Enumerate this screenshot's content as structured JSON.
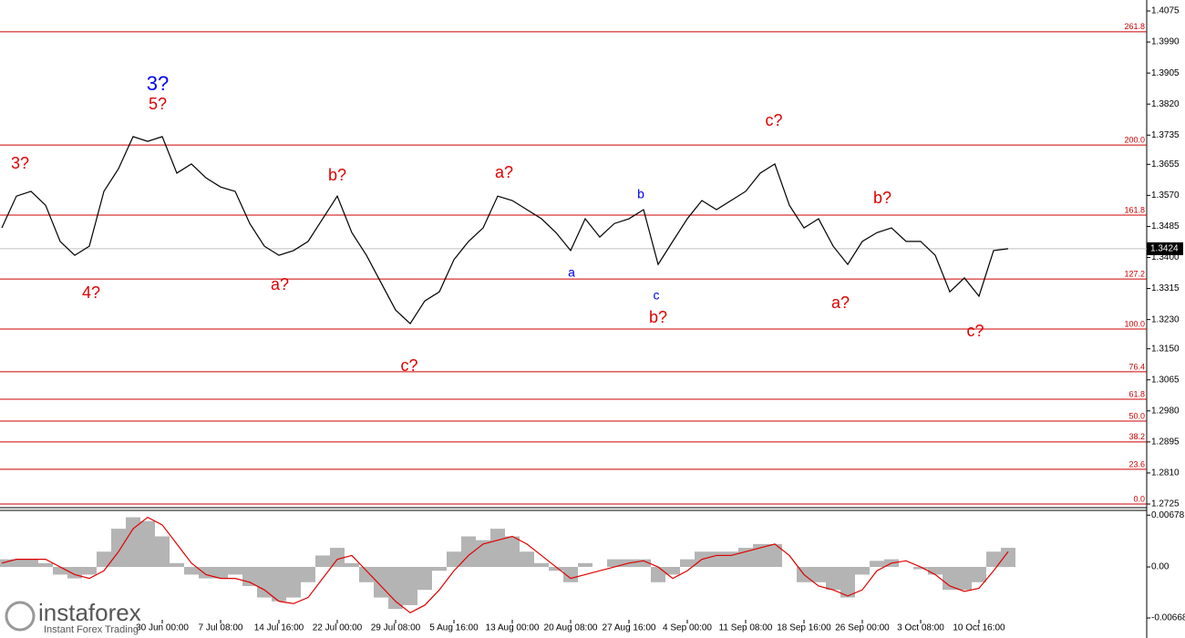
{
  "chart_data": [
    {
      "type": "line",
      "categories": [
        null,
        null,
        null,
        null,
        null,
        null,
        null,
        null,
        null,
        null,
        null,
        "30 Jun 00:00",
        null,
        null,
        null,
        "7 Jul 08:00",
        null,
        null,
        null,
        "14 Jul 16:00",
        null,
        null,
        null,
        "22 Jul 00:00",
        null,
        null,
        null,
        "29 Jul 08:00",
        null,
        null,
        null,
        "5 Aug 16:00",
        null,
        null,
        null,
        "13 Aug 00:00",
        null,
        null,
        null,
        "20 Aug 08:00",
        null,
        null,
        null,
        "27 Aug 16:00",
        null,
        null,
        null,
        "4 Sep 00:00",
        null,
        null,
        null,
        "11 Sep 08:00",
        null,
        null,
        null,
        "18 Sep 16:00",
        null,
        null,
        null,
        "26 Sep 00:00",
        null,
        null,
        null,
        "3 Oct 08:00",
        null,
        null,
        null,
        "10 Oct 16:00",
        null,
        null
      ],
      "values": [
        1.3481,
        1.3568,
        1.3581,
        1.3543,
        1.3444,
        1.3406,
        1.3431,
        1.3581,
        1.3643,
        1.3731,
        1.3718,
        1.3731,
        1.3631,
        1.3656,
        1.3618,
        1.3593,
        1.3581,
        1.3493,
        1.3431,
        1.3406,
        1.3419,
        1.3444,
        1.3506,
        1.3568,
        1.3468,
        1.3406,
        1.3331,
        1.3256,
        1.3219,
        1.3281,
        1.3306,
        1.3394,
        1.3444,
        1.3481,
        1.3568,
        1.3556,
        1.3531,
        1.3506,
        1.3468,
        1.3419,
        1.3506,
        1.3456,
        1.3493,
        1.3506,
        1.3531,
        1.3381,
        1.3444,
        1.3506,
        1.3556,
        1.3531,
        1.3556,
        1.3581,
        1.3631,
        1.3656,
        1.3543,
        1.3481,
        1.3506,
        1.3431,
        1.3381,
        1.3444,
        1.3468,
        1.3481,
        1.3444,
        1.3444,
        1.3406,
        1.3306,
        1.3344,
        1.3294,
        1.3419,
        1.3424
      ],
      "color": "#000000",
      "ylim": [
        1.2715,
        1.4105
      ],
      "yticks": [
        1.4075,
        {
          "value": 1.399,
          "label": "1.3990"
        },
        1.3905,
        {
          "value": 1.382,
          "label": "1.3820"
        },
        1.3735,
        1.3655,
        {
          "value": 1.357,
          "label": "1.3570"
        },
        1.3485,
        {
          "value": 1.34,
          "label": "1.3400"
        },
        1.3315,
        {
          "value": 1.323,
          "label": "1.3230"
        },
        {
          "value": 1.315,
          "label": "1.3150"
        },
        1.3065,
        {
          "value": 1.298,
          "label": "1.2980"
        },
        1.2895,
        {
          "value": 1.281,
          "label": "1.2810"
        },
        1.2725
      ],
      "fib_color": "#cc0000",
      "fib_levels": [
        {
          "label": "261.8",
          "value": 1.4018
        },
        {
          "label": "200.0",
          "value": 1.3708
        },
        {
          "label": "161.8",
          "value": 1.3516
        },
        {
          "label": "127.2",
          "value": 1.3341
        },
        {
          "label": "100.0",
          "value": 1.3204
        },
        {
          "label": "76.4",
          "value": 1.3087
        },
        {
          "label": "61.8",
          "value": 1.3012
        },
        {
          "label": "50.0",
          "value": 1.2952
        },
        {
          "label": "38.2",
          "value": 1.2895
        },
        {
          "label": "23.6",
          "value": 1.282
        },
        {
          "label": "0.0",
          "value": 1.2725
        }
      ],
      "last_price": 1.3424,
      "last_price_label": "1.3424",
      "annotations": [
        {
          "text": "3?",
          "color": "#e00000"
        },
        {
          "text": "3?",
          "color": "#0000ee"
        },
        {
          "text": "5?",
          "color": "#e00000"
        },
        {
          "text": "4?",
          "color": "#e00000"
        },
        {
          "text": "a?",
          "color": "#e00000"
        },
        {
          "text": "b?",
          "color": "#e00000"
        },
        {
          "text": "c?",
          "color": "#e00000"
        },
        {
          "text": "a?",
          "color": "#e00000"
        },
        {
          "text": "a",
          "color": "#0000ee"
        },
        {
          "text": "b",
          "color": "#0000ee"
        },
        {
          "text": "c",
          "color": "#0000ee"
        },
        {
          "text": "b?",
          "color": "#e00000"
        },
        {
          "text": "c?",
          "color": "#e00000"
        },
        {
          "text": "a?",
          "color": "#e00000"
        },
        {
          "text": "b?",
          "color": "#e00000"
        },
        {
          "text": "c?",
          "color": "#e00000"
        }
      ]
    },
    {
      "type": "bar",
      "values": [
        0.001,
        0.001,
        0.001,
        0.0005,
        -0.001,
        -0.0015,
        -0.001,
        0.002,
        0.005,
        0.0065,
        0.006,
        0.004,
        0.0005,
        -0.001,
        -0.0015,
        -0.0015,
        -0.001,
        -0.0025,
        -0.004,
        -0.0045,
        -0.004,
        -0.002,
        0.0015,
        0.0025,
        0.0005,
        -0.002,
        -0.004,
        -0.0055,
        -0.005,
        -0.003,
        -0.0005,
        0.002,
        0.004,
        0.0035,
        0.005,
        0.004,
        0.002,
        0.0005,
        -0.0005,
        -0.002,
        0.0005,
        0,
        0.001,
        0.001,
        0.001,
        -0.002,
        -0.001,
        0.001,
        0.002,
        0.002,
        0.002,
        0.0025,
        0.003,
        0.003,
        0,
        -0.002,
        -0.002,
        -0.003,
        -0.004,
        -0.001,
        0.0008,
        0.001,
        0,
        -0.0003,
        -0.001,
        -0.003,
        -0.003,
        -0.002,
        0.002,
        0.0025
      ],
      "color": "#b4b4b4",
      "signal": [
        0.0005,
        0.001,
        0.001,
        0.001,
        0,
        -0.001,
        -0.0015,
        -0.0005,
        0.002,
        0.005,
        0.0065,
        0.0055,
        0.003,
        0.0005,
        -0.001,
        -0.0015,
        -0.0015,
        -0.002,
        -0.003,
        -0.0045,
        -0.0048,
        -0.004,
        -0.0015,
        0.001,
        0.0015,
        -0.0005,
        -0.0025,
        -0.0045,
        -0.006,
        -0.005,
        -0.003,
        -0.0005,
        0.0015,
        0.003,
        0.0035,
        0.004,
        0.003,
        0.0015,
        0,
        -0.0015,
        -0.001,
        -0.0005,
        0,
        0.0005,
        0.0008,
        0,
        -0.0015,
        -0.0005,
        0.001,
        0.0015,
        0.0015,
        0.002,
        0.0025,
        0.003,
        0.0015,
        -0.001,
        -0.0025,
        -0.003,
        -0.0038,
        -0.003,
        -0.0005,
        0.0005,
        0.0008,
        0,
        -0.001,
        -0.0025,
        -0.0032,
        -0.0028,
        -0.0005,
        0.002
      ],
      "signal_color": "#e00000",
      "ylim": [
        -0.0093,
        0.0074
      ],
      "yticks": [
        0.00678,
        {
          "value": 0,
          "label": "0.00"
        },
        -0.00668
      ]
    }
  ],
  "watermark": {
    "brand": "instaforex",
    "tagline": "Instant Forex Trading"
  }
}
